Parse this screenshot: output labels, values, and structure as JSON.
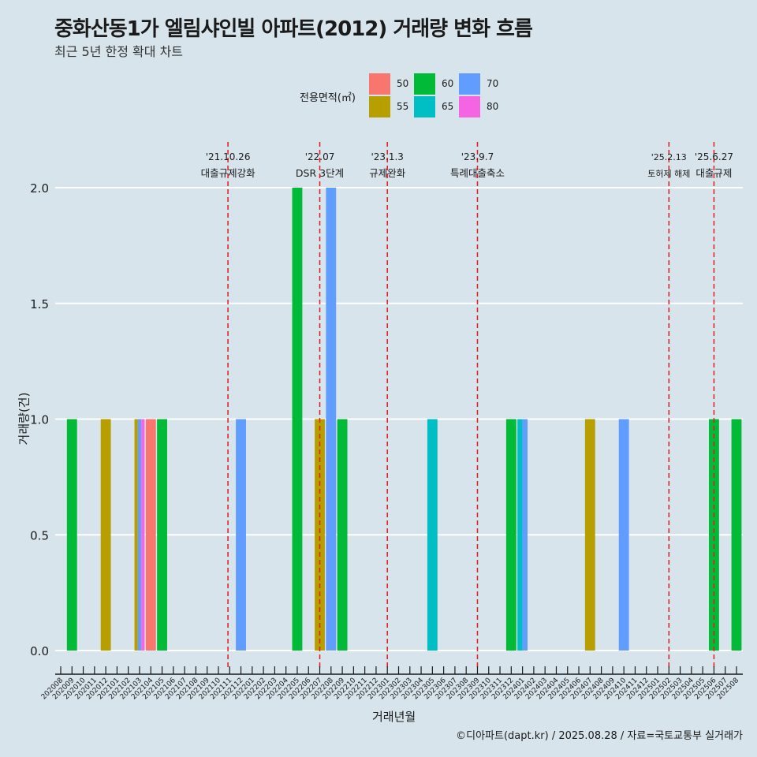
{
  "chart_data": {
    "type": "bar",
    "title": "중화산동1가 엘림샤인빌 아파트(2012) 거래량 변화 흐름",
    "subtitle": "최근 5년 한정 확대 차트",
    "xlabel": "거래년월",
    "ylabel": "거래량(건)",
    "ylim": [
      0,
      2
    ],
    "yticks": [
      "0.0",
      "0.5",
      "1.0",
      "1.5",
      "2.0"
    ],
    "ytick_values": [
      0,
      0.5,
      1,
      1.5,
      2
    ],
    "grid": true,
    "legend": {
      "title": "전용면적(㎡)",
      "position": "top",
      "entries": [
        {
          "label": "50",
          "color": "#F8766D"
        },
        {
          "label": "55",
          "color": "#B79F00"
        },
        {
          "label": "60",
          "color": "#00BA38"
        },
        {
          "label": "65",
          "color": "#00BFC4"
        },
        {
          "label": "70",
          "color": "#619CFF"
        },
        {
          "label": "80",
          "color": "#F564E3"
        }
      ]
    },
    "categories": [
      "202008",
      "202009",
      "202010",
      "202011",
      "202012",
      "202101",
      "202102",
      "202103",
      "202104",
      "202105",
      "202106",
      "202107",
      "202108",
      "202109",
      "202110",
      "202111",
      "202112",
      "202201",
      "202202",
      "202203",
      "202204",
      "202205",
      "202206",
      "202207",
      "202208",
      "202209",
      "202210",
      "202211",
      "202212",
      "202301",
      "202302",
      "202303",
      "202304",
      "202305",
      "202306",
      "202307",
      "202308",
      "202309",
      "202310",
      "202311",
      "202312",
      "202401",
      "202402",
      "202403",
      "202404",
      "202405",
      "202406",
      "202407",
      "202408",
      "202409",
      "202410",
      "202411",
      "202412",
      "202501",
      "202502",
      "202503",
      "202504",
      "202505",
      "202506",
      "202507",
      "202508"
    ],
    "bars": [
      {
        "month": "202009",
        "groups": [
          {
            "area": "60",
            "value": 1
          }
        ]
      },
      {
        "month": "202012",
        "groups": [
          {
            "area": "55",
            "value": 1
          }
        ]
      },
      {
        "month": "202103",
        "groups": [
          {
            "area": "55",
            "value": 1
          },
          {
            "area": "70",
            "value": 1
          },
          {
            "area": "80",
            "value": 1
          }
        ]
      },
      {
        "month": "202104",
        "groups": [
          {
            "area": "50",
            "value": 1
          }
        ]
      },
      {
        "month": "202105",
        "groups": [
          {
            "area": "60",
            "value": 1
          }
        ]
      },
      {
        "month": "202112",
        "groups": [
          {
            "area": "70",
            "value": 1
          }
        ]
      },
      {
        "month": "202205",
        "groups": [
          {
            "area": "60",
            "value": 2
          }
        ]
      },
      {
        "month": "202207",
        "groups": [
          {
            "area": "55",
            "value": 1
          }
        ]
      },
      {
        "month": "202208",
        "groups": [
          {
            "area": "70",
            "value": 2
          }
        ]
      },
      {
        "month": "202209",
        "groups": [
          {
            "area": "60",
            "value": 1
          }
        ]
      },
      {
        "month": "202305",
        "groups": [
          {
            "area": "65",
            "value": 1
          }
        ]
      },
      {
        "month": "202312",
        "groups": [
          {
            "area": "60",
            "value": 1
          }
        ]
      },
      {
        "month": "202401",
        "groups": [
          {
            "area": "65",
            "value": 1
          },
          {
            "area": "70",
            "value": 1
          }
        ]
      },
      {
        "month": "202407",
        "groups": [
          {
            "area": "55",
            "value": 1
          }
        ]
      },
      {
        "month": "202410",
        "groups": [
          {
            "area": "70",
            "value": 1
          }
        ]
      },
      {
        "month": "202506",
        "groups": [
          {
            "area": "60",
            "value": 1
          }
        ]
      },
      {
        "month": "202508",
        "groups": [
          {
            "area": "60",
            "value": 1
          }
        ]
      }
    ],
    "annotations": [
      {
        "date": "'21.10.26",
        "label": "대출규제강화",
        "month_pos": 14.85
      },
      {
        "date": "'22.07",
        "label": "DSR 3단계",
        "month_pos": 23
      },
      {
        "date": "'23.1.3",
        "label": "규제완화",
        "month_pos": 29.0
      },
      {
        "date": "'23.9.7",
        "label": "특례대출축소",
        "month_pos": 37.0
      },
      {
        "date": "'25.2.13",
        "label": "토허제 해제",
        "month_pos": 54.0
      },
      {
        "date": "'25.6.27",
        "label": "대출규제",
        "month_pos": 58.0
      }
    ],
    "line_color": "#E41A1C"
  },
  "footer": "©디아파트(dapt.kr) / 2025.08.28 / 자료=국토교통부 실거래가"
}
